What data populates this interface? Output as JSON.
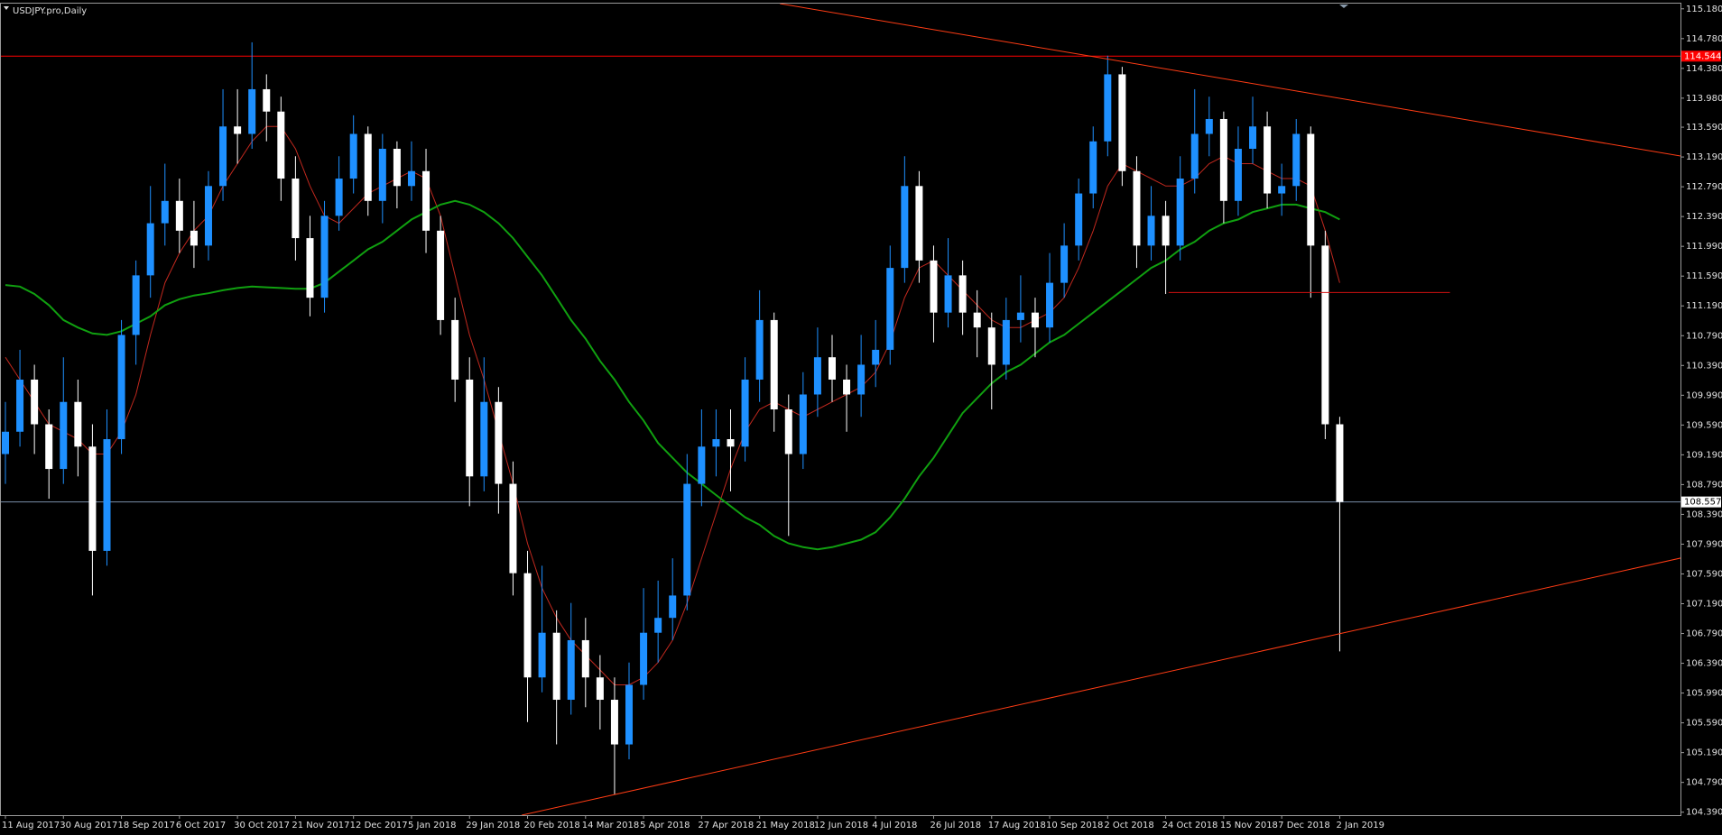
{
  "chart_data": {
    "type": "candlestick",
    "title": "USDJPY.pro,Daily",
    "up_color": "#1e90ff",
    "down_color": "#ffffff",
    "categories": [
      "11 Aug 2017",
      null,
      null,
      null,
      "30 Aug 2017",
      null,
      null,
      null,
      "18 Sep 2017",
      null,
      null,
      null,
      "6 Oct 2017",
      null,
      null,
      null,
      "30 Oct 2017",
      null,
      null,
      null,
      "21 Nov 2017",
      null,
      null,
      null,
      "12 Dec 2017",
      null,
      null,
      null,
      "5 Jan 2018",
      null,
      null,
      null,
      "29 Jan 2018",
      null,
      null,
      null,
      "20 Feb 2018",
      null,
      null,
      null,
      "14 Mar 2018",
      null,
      null,
      null,
      "5 Apr 2018",
      null,
      null,
      null,
      "27 Apr 2018",
      null,
      null,
      null,
      "21 May 2018",
      null,
      null,
      null,
      "12 Jun 2018",
      null,
      null,
      null,
      "4 Jul 2018",
      null,
      null,
      null,
      "26 Jul 2018",
      null,
      null,
      null,
      "17 Aug 2018",
      null,
      null,
      null,
      "10 Sep 2018",
      null,
      null,
      null,
      "2 Oct 2018",
      null,
      null,
      null,
      "24 Oct 2018",
      null,
      null,
      null,
      "15 Nov 2018",
      null,
      null,
      null,
      "7 Dec 2018",
      null,
      null,
      null,
      "2 Jan 2019"
    ],
    "open": [
      109.2,
      109.5,
      110.2,
      109.6,
      109.0,
      109.9,
      109.3,
      107.9,
      109.4,
      110.8,
      111.6,
      112.3,
      112.6,
      112.2,
      112.0,
      112.8,
      113.6,
      113.5,
      114.1,
      113.8,
      112.9,
      112.1,
      111.3,
      112.4,
      112.9,
      113.5,
      112.6,
      113.3,
      112.8,
      113.0,
      112.2,
      111.0,
      110.2,
      108.9,
      109.9,
      108.8,
      107.6,
      106.2,
      106.8,
      105.9,
      106.7,
      106.2,
      105.9,
      105.3,
      106.1,
      106.8,
      107.0,
      107.3,
      108.8,
      109.3,
      109.4,
      109.3,
      110.2,
      111.0,
      109.8,
      109.2,
      110.0,
      110.5,
      110.2,
      110.0,
      110.4,
      110.6,
      111.7,
      112.8,
      111.8,
      111.1,
      111.6,
      111.1,
      110.9,
      110.4,
      111.0,
      111.1,
      110.9,
      111.5,
      112.0,
      112.7,
      113.4,
      114.3,
      113.0,
      112.0,
      112.4,
      112.0,
      112.9,
      113.5,
      113.7,
      112.6,
      113.3,
      113.6,
      112.7,
      112.8,
      113.5,
      112.0,
      109.6
    ],
    "high": [
      109.9,
      110.6,
      110.4,
      109.8,
      110.5,
      110.2,
      109.6,
      109.8,
      111.0,
      111.8,
      112.8,
      113.1,
      112.9,
      112.6,
      113.0,
      114.1,
      114.1,
      114.73,
      114.3,
      114.0,
      113.2,
      112.4,
      112.6,
      113.2,
      113.75,
      113.6,
      113.5,
      113.4,
      113.4,
      113.3,
      112.4,
      111.3,
      110.5,
      110.5,
      110.1,
      109.1,
      107.9,
      107.7,
      107.1,
      107.2,
      107.0,
      106.5,
      106.2,
      106.4,
      107.4,
      107.5,
      107.8,
      109.2,
      109.8,
      109.8,
      109.8,
      110.5,
      111.4,
      111.1,
      110.0,
      110.3,
      110.9,
      110.8,
      110.4,
      110.8,
      111.0,
      112.0,
      113.2,
      113.0,
      112.0,
      112.1,
      111.8,
      111.4,
      111.1,
      111.3,
      111.6,
      111.3,
      111.9,
      112.3,
      112.9,
      113.6,
      114.55,
      114.4,
      113.2,
      112.8,
      112.6,
      113.2,
      114.1,
      114.0,
      113.8,
      113.6,
      114.0,
      113.8,
      113.1,
      113.7,
      113.6,
      112.2,
      109.7
    ],
    "low": [
      108.8,
      109.3,
      109.2,
      108.6,
      108.8,
      108.9,
      107.3,
      107.7,
      109.2,
      110.4,
      111.3,
      112.0,
      111.9,
      111.7,
      111.8,
      112.6,
      113.1,
      113.3,
      113.4,
      112.6,
      111.8,
      111.05,
      111.1,
      112.2,
      112.7,
      112.4,
      112.3,
      112.5,
      112.6,
      111.9,
      110.8,
      109.9,
      108.5,
      108.7,
      108.4,
      107.3,
      105.6,
      106.0,
      105.3,
      105.7,
      105.8,
      105.5,
      104.63,
      105.1,
      105.9,
      106.4,
      106.7,
      107.1,
      108.5,
      108.9,
      108.7,
      109.1,
      109.9,
      109.5,
      108.1,
      109.0,
      109.7,
      109.9,
      109.5,
      109.7,
      110.1,
      110.4,
      111.5,
      111.5,
      110.7,
      110.9,
      110.8,
      110.5,
      109.8,
      110.2,
      110.7,
      110.5,
      110.7,
      111.3,
      111.8,
      112.5,
      113.2,
      112.8,
      111.7,
      111.8,
      111.35,
      111.8,
      112.7,
      113.2,
      112.3,
      112.4,
      113.1,
      112.5,
      112.4,
      112.6,
      111.3,
      109.4,
      106.55
    ],
    "close": [
      109.5,
      110.2,
      109.6,
      109.0,
      109.9,
      109.3,
      107.9,
      109.4,
      110.8,
      111.6,
      112.3,
      112.6,
      112.2,
      112.0,
      112.8,
      113.6,
      113.5,
      114.1,
      113.8,
      112.9,
      112.1,
      111.3,
      112.4,
      112.9,
      113.5,
      112.6,
      113.3,
      112.8,
      113.0,
      112.2,
      111.0,
      110.2,
      108.9,
      109.9,
      108.8,
      107.6,
      106.2,
      106.8,
      105.9,
      106.7,
      106.2,
      105.9,
      105.3,
      106.1,
      106.8,
      107.0,
      107.3,
      108.8,
      109.3,
      109.4,
      109.3,
      110.2,
      111.0,
      109.8,
      109.2,
      110.0,
      110.5,
      110.2,
      110.0,
      110.4,
      110.6,
      111.7,
      112.8,
      111.8,
      111.1,
      111.6,
      111.1,
      110.9,
      110.4,
      111.0,
      111.1,
      110.9,
      111.5,
      112.0,
      112.7,
      113.4,
      114.3,
      113.0,
      112.0,
      112.4,
      112.0,
      112.9,
      113.5,
      113.7,
      112.6,
      113.3,
      113.6,
      112.7,
      112.8,
      113.5,
      112.0,
      109.6,
      108.557
    ],
    "series": [
      {
        "color": "#c0281e",
        "values": [
          110.5,
          110.2,
          109.9,
          109.6,
          109.5,
          109.4,
          109.2,
          109.2,
          109.5,
          110.0,
          110.8,
          111.5,
          111.9,
          112.2,
          112.4,
          112.8,
          113.1,
          113.4,
          113.6,
          113.6,
          113.3,
          112.8,
          112.4,
          112.3,
          112.5,
          112.7,
          112.8,
          112.9,
          113.0,
          112.9,
          112.4,
          111.6,
          110.8,
          110.2,
          109.5,
          108.8,
          108.0,
          107.4,
          107.0,
          106.7,
          106.5,
          106.3,
          106.1,
          106.1,
          106.2,
          106.4,
          106.7,
          107.2,
          107.8,
          108.4,
          109.0,
          109.5,
          109.8,
          109.9,
          109.8,
          109.7,
          109.8,
          109.9,
          110.0,
          110.1,
          110.3,
          110.7,
          111.3,
          111.7,
          111.8,
          111.6,
          111.4,
          111.2,
          111.0,
          110.9,
          110.9,
          111.0,
          111.1,
          111.3,
          111.7,
          112.2,
          112.8,
          113.1,
          113.0,
          112.9,
          112.8,
          112.8,
          112.9,
          113.1,
          113.2,
          113.1,
          113.1,
          113.0,
          112.9,
          112.9,
          112.8,
          112.2,
          111.5
        ]
      },
      {
        "color": "#10a010",
        "values": [
          111.47,
          111.45,
          111.35,
          111.2,
          111.0,
          110.9,
          110.82,
          110.8,
          110.85,
          110.95,
          111.05,
          111.2,
          111.28,
          111.33,
          111.36,
          111.4,
          111.43,
          111.45,
          111.44,
          111.43,
          111.42,
          111.42,
          111.5,
          111.65,
          111.8,
          111.95,
          112.05,
          112.2,
          112.35,
          112.45,
          112.55,
          112.6,
          112.55,
          112.45,
          112.3,
          112.1,
          111.85,
          111.6,
          111.3,
          111.0,
          110.75,
          110.45,
          110.2,
          109.9,
          109.65,
          109.35,
          109.15,
          108.95,
          108.8,
          108.65,
          108.5,
          108.35,
          108.25,
          108.1,
          108.0,
          107.95,
          107.92,
          107.95,
          108.0,
          108.05,
          108.15,
          108.35,
          108.6,
          108.9,
          109.15,
          109.45,
          109.75,
          109.95,
          110.15,
          110.3,
          110.4,
          110.55,
          110.7,
          110.8,
          110.95,
          111.1,
          111.25,
          111.4,
          111.55,
          111.7,
          111.8,
          111.95,
          112.05,
          112.2,
          112.3,
          112.35,
          112.45,
          112.5,
          112.55,
          112.55,
          112.5,
          112.45,
          112.35
        ]
      }
    ],
    "price_lines": [
      {
        "value": 114.544,
        "color": "#ff0000"
      },
      {
        "value": 108.557,
        "color": "#7a8ea8"
      }
    ],
    "trendlines": [
      {
        "start": [
          53.4,
          115.25
        ],
        "end": [
          115.9,
          113.19
        ],
        "color": "#ff3c14"
      },
      {
        "start": [
          35.6,
          104.35
        ],
        "end": [
          115.9,
          107.82
        ],
        "color": "#ff3c14"
      },
      {
        "start": [
          80.2,
          111.37
        ],
        "end": [
          99.6,
          111.37
        ],
        "color": "#d01010"
      }
    ],
    "ylim": [
      104.35,
      115.25
    ],
    "yticks": [
      {
        "value": 115.18,
        "label": "115.180"
      },
      {
        "value": 114.78,
        "label": "114.780"
      },
      {
        "value": 114.38,
        "label": "114.380"
      },
      {
        "value": 113.98,
        "label": "113.980"
      },
      {
        "value": 113.59,
        "label": "113.590"
      },
      {
        "value": 113.19,
        "label": "113.190"
      },
      {
        "value": 112.79,
        "label": "112.790"
      },
      {
        "value": 112.39,
        "label": "112.390"
      },
      {
        "value": 111.99,
        "label": "111.990"
      },
      {
        "value": 111.59,
        "label": "111.590"
      },
      {
        "value": 111.19,
        "label": "111.190"
      },
      {
        "value": 110.79,
        "label": "110.790"
      },
      {
        "value": 110.39,
        "label": "110.390"
      },
      {
        "value": 109.99,
        "label": "109.990"
      },
      {
        "value": 109.59,
        "label": "109.590"
      },
      {
        "value": 109.19,
        "label": "109.190"
      },
      {
        "value": 108.79,
        "label": "108.790"
      },
      {
        "value": 108.39,
        "label": "108.390"
      },
      {
        "value": 107.99,
        "label": "107.990"
      },
      {
        "value": 107.59,
        "label": "107.590"
      },
      {
        "value": 107.19,
        "label": "107.190"
      },
      {
        "value": 106.79,
        "label": "106.790"
      },
      {
        "value": 106.39,
        "label": "106.390"
      },
      {
        "value": 105.99,
        "label": "105.990"
      },
      {
        "value": 105.59,
        "label": "105.590"
      },
      {
        "value": 105.19,
        "label": "105.190"
      },
      {
        "value": 104.79,
        "label": "104.790"
      },
      {
        "value": 104.39,
        "label": "104.390"
      }
    ]
  }
}
